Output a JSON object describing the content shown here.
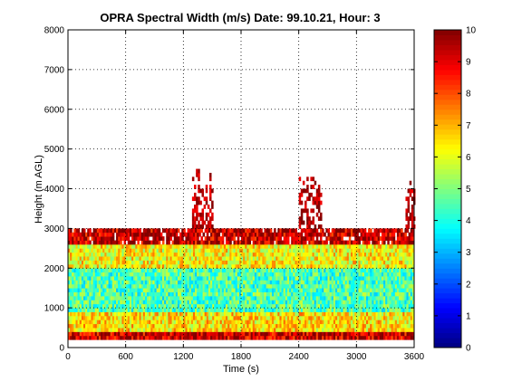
{
  "chart_data": {
    "type": "heatmap",
    "title": "OPRA Spectral Width (m/s)  Date: 99.10.21, Hour: 3",
    "xlabel": "Time (s)",
    "ylabel": "Height (m AGL)",
    "xlim": [
      0,
      3600
    ],
    "ylim": [
      0,
      8000
    ],
    "x_ticks": [
      0,
      600,
      1200,
      1800,
      2400,
      3000,
      3600
    ],
    "y_ticks": [
      0,
      1000,
      2000,
      3000,
      4000,
      5000,
      6000,
      7000,
      8000
    ],
    "grid": true,
    "colormap": "jet",
    "colorbar": {
      "range": [
        0,
        10
      ],
      "ticks": [
        0,
        1,
        2,
        3,
        4,
        5,
        6,
        7,
        8,
        9,
        10
      ],
      "placement": "right"
    },
    "field_description": {
      "data_top_height_m": 3000,
      "gate_spacing_m": 100,
      "time_step_s": 20,
      "value_bands": [
        {
          "height_m": [
            200,
            400
          ],
          "typical_value": 9.2
        },
        {
          "height_m": [
            400,
            900
          ],
          "typical_value": 6.5
        },
        {
          "height_m": [
            900,
            2000
          ],
          "typical_value": 4.5
        },
        {
          "height_m": [
            2000,
            2600
          ],
          "typical_value": 6.3
        },
        {
          "height_m": [
            2600,
            3000
          ],
          "typical_value": 9.3
        }
      ],
      "plumes": [
        {
          "time_s": [
            1290,
            1500
          ],
          "height_m": [
            3000,
            4500
          ],
          "value": 9.5
        },
        {
          "time_s": [
            2400,
            2640
          ],
          "height_m": [
            3000,
            4300
          ],
          "value": 9.5
        },
        {
          "time_s": [
            3510,
            3600
          ],
          "height_m": [
            3000,
            4200
          ],
          "value": 9.5
        }
      ]
    }
  }
}
